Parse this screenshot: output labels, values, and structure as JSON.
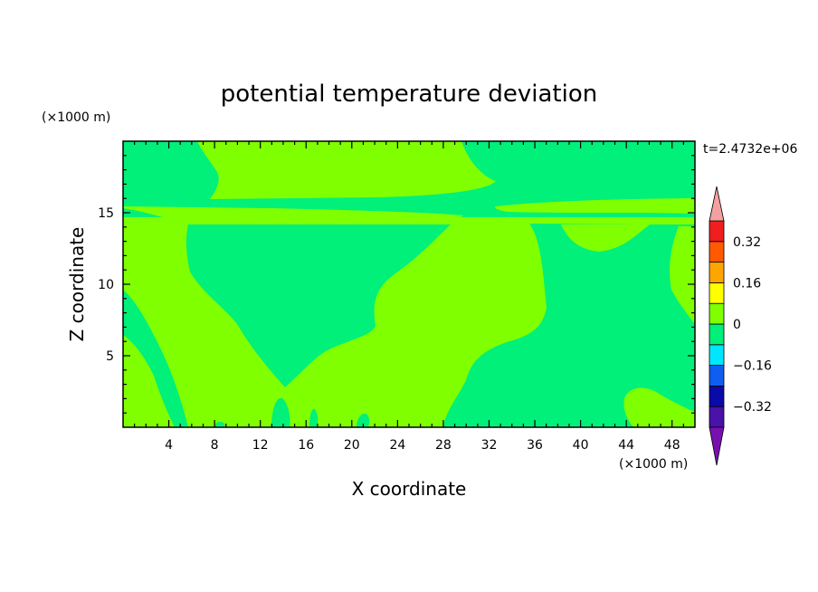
{
  "chart_data": {
    "type": "contour",
    "title": "potential temperature deviation",
    "xlabel": "X coordinate",
    "ylabel": "Z coordinate",
    "x_unit": "(×1000 m)",
    "y_unit": "(×1000 m)",
    "time_label": "t=2.4732e+06",
    "xlim": [
      0,
      50
    ],
    "ylim": [
      0,
      20
    ],
    "x_ticks": [
      4,
      8,
      12,
      16,
      20,
      24,
      28,
      32,
      36,
      40,
      44,
      48
    ],
    "y_ticks": [
      5,
      10,
      15
    ],
    "colorbar": {
      "levels": [
        -0.4,
        -0.32,
        -0.24,
        -0.16,
        -0.08,
        0,
        0.08,
        0.16,
        0.24,
        0.32,
        0.4
      ],
      "colors": [
        "#4a12a8",
        "#0a0aa8",
        "#0f5ef0",
        "#00e6ff",
        "#00f07a",
        "#80ff00",
        "#ffff00",
        "#ffa500",
        "#ff5a00",
        "#f01e1e"
      ],
      "below_color": "#7810b0",
      "above_color": "#f5a0a0",
      "labels": [
        "0.32",
        "0.16",
        "0",
        "-0.16",
        "-0.32"
      ],
      "label_values": [
        0.32,
        0.16,
        0,
        -0.16,
        -0.32
      ]
    },
    "fields": {
      "negative_band": "#00f07a",
      "positive_band": "#80ff00"
    }
  }
}
